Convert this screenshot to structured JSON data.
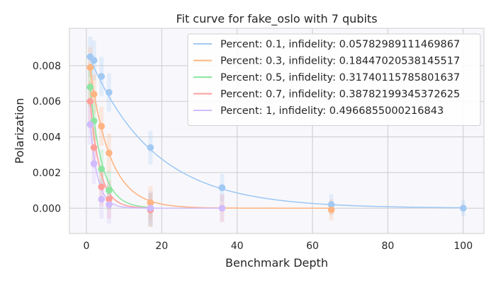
{
  "chart_data": {
    "type": "scatter",
    "title": "Fit curve for fake_oslo with 7 qubits",
    "xlabel": "Benchmark Depth",
    "ylabel": "Polarization",
    "xlim": [
      -4.5,
      105.5
    ],
    "ylim": [
      -0.00142,
      0.0101
    ],
    "xticks": [
      0,
      20,
      40,
      60,
      80,
      100
    ],
    "xtick_labels": [
      "0",
      "20",
      "40",
      "60",
      "80",
      "100"
    ],
    "yticks": [
      0.0,
      0.002,
      0.004,
      0.006,
      0.008
    ],
    "ytick_labels": [
      "0.000",
      "0.002",
      "0.004",
      "0.006",
      "0.008"
    ],
    "grid": true,
    "legend_position": "top-right",
    "series": [
      {
        "name": "Percent: 0.1, infidelity: 0.05782989111469867",
        "color": "#a1c9f4",
        "x": [
          1,
          2,
          4,
          6,
          17,
          36,
          65,
          100
        ],
        "y": [
          0.0085,
          0.0083,
          0.0074,
          0.0065,
          0.0034,
          0.00115,
          0.0002,
          0.0
        ],
        "fit": {
          "a": 0.0089,
          "b": 0.0585
        }
      },
      {
        "name": "Percent: 0.3, infidelity: 0.18447020538145517",
        "color": "#ffb482",
        "x": [
          1,
          2,
          4,
          6,
          17,
          36,
          65
        ],
        "y": [
          0.0079,
          0.0064,
          0.0046,
          0.0031,
          0.0003,
          0.0,
          -0.0001
        ],
        "fit": {
          "a": 0.0094,
          "b": 0.186
        }
      },
      {
        "name": "Percent: 0.5, infidelity: 0.31740115785801637",
        "color": "#8de5a1",
        "x": [
          1,
          2,
          4,
          6,
          17
        ],
        "y": [
          0.0068,
          0.0049,
          0.0022,
          0.001,
          -0.0001
        ],
        "fit": {
          "a": 0.0093,
          "b": 0.316
        }
      },
      {
        "name": "Percent: 0.7, infidelity: 0.38782199345372625",
        "color": "#ff9f9b",
        "x": [
          1,
          2,
          4,
          6,
          17
        ],
        "y": [
          0.006,
          0.0034,
          0.0012,
          0.0005,
          -0.0001
        ],
        "fit": {
          "a": 0.0089,
          "b": 0.388
        }
      },
      {
        "name": "Percent: 1, infidelity: 0.4966855000216843",
        "color": "#d0bbff",
        "x": [
          1,
          2,
          4,
          6,
          17,
          36
        ],
        "y": [
          0.0047,
          0.0025,
          0.0005,
          0.0002,
          0.0,
          0.0
        ],
        "fit": {
          "a": 0.0078,
          "b": 0.495
        }
      }
    ]
  }
}
